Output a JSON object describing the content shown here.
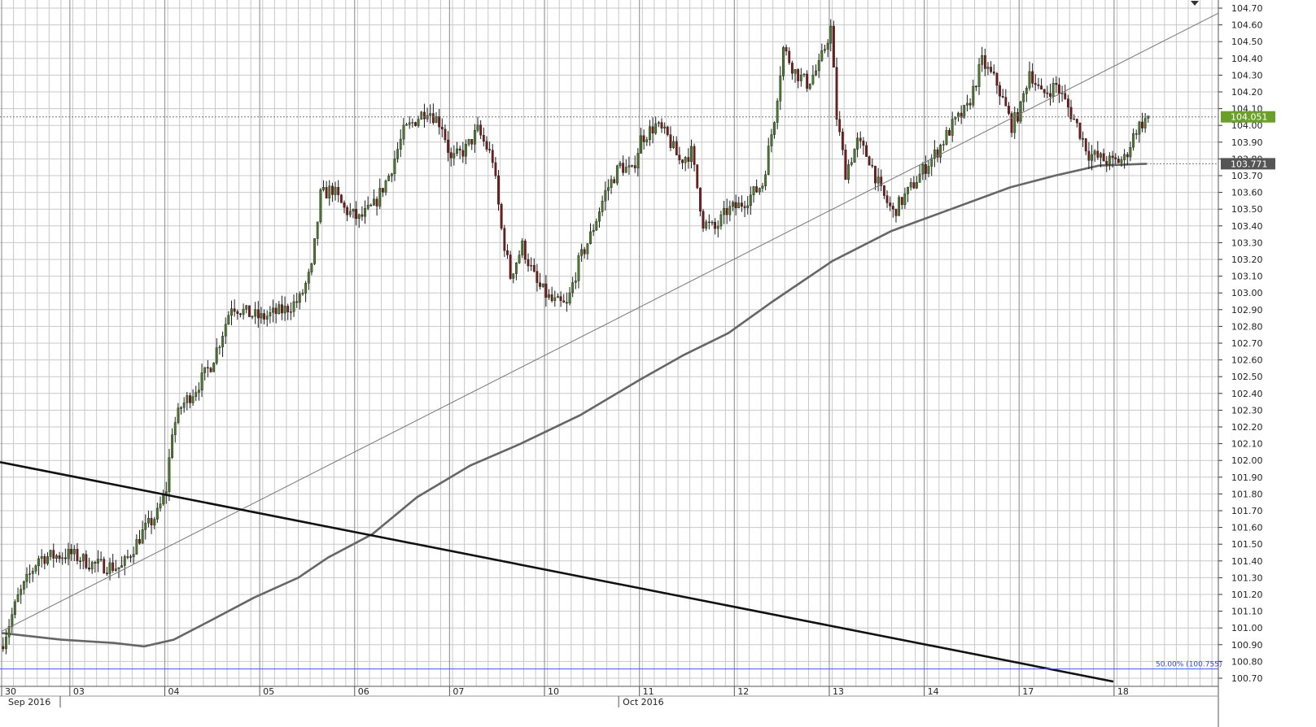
{
  "chart_data": {
    "type": "candlestick",
    "ylim": [
      100.67,
      104.72
    ],
    "y_ticks": [
      "104.70",
      "104.60",
      "104.50",
      "104.40",
      "104.30",
      "104.20",
      "104.10",
      "104.00",
      "103.90",
      "103.80",
      "103.70",
      "103.60",
      "103.50",
      "103.40",
      "103.30",
      "103.20",
      "103.10",
      "103.00",
      "102.90",
      "102.80",
      "102.70",
      "102.60",
      "102.50",
      "102.40",
      "102.30",
      "102.20",
      "102.10",
      "102.00",
      "101.90",
      "101.80",
      "101.70",
      "101.60",
      "101.50",
      "101.40",
      "101.30",
      "101.20",
      "101.10",
      "101.00",
      "100.90",
      "100.80",
      "100.70"
    ],
    "x_day_labels": [
      {
        "label": "30",
        "bar": 0
      },
      {
        "label": "03",
        "bar": 23
      },
      {
        "label": "04",
        "bar": 55
      },
      {
        "label": "05",
        "bar": 87
      },
      {
        "label": "06",
        "bar": 119
      },
      {
        "label": "07",
        "bar": 151
      },
      {
        "label": "10",
        "bar": 183
      },
      {
        "label": "11",
        "bar": 215
      },
      {
        "label": "12",
        "bar": 247
      },
      {
        "label": "13",
        "bar": 279
      },
      {
        "label": "14",
        "bar": 311
      },
      {
        "label": "17",
        "bar": 343
      },
      {
        "label": "18",
        "bar": 375
      }
    ],
    "x_month_labels": [
      {
        "label": "Sep 2016",
        "bar": 0
      },
      {
        "label": "Oct 2016",
        "bar": 208
      }
    ],
    "last_price": 104.051,
    "last_price_label": "104.051",
    "ma_value": 103.771,
    "ma_value_label": "103.771",
    "fib_level": 100.755,
    "fib_label": "50.00% (100.755)",
    "key_closes": [
      [
        0,
        100.92
      ],
      [
        5,
        101.18
      ],
      [
        12,
        101.42
      ],
      [
        23,
        101.44
      ],
      [
        30,
        101.38
      ],
      [
        40,
        101.36
      ],
      [
        47,
        101.57
      ],
      [
        52,
        101.68
      ],
      [
        55,
        101.83
      ],
      [
        57,
        102.18
      ],
      [
        60,
        102.32
      ],
      [
        65,
        102.43
      ],
      [
        70,
        102.57
      ],
      [
        73,
        102.71
      ],
      [
        77,
        102.93
      ],
      [
        82,
        102.88
      ],
      [
        87,
        102.85
      ],
      [
        95,
        102.9
      ],
      [
        100,
        102.96
      ],
      [
        104,
        103.14
      ],
      [
        107,
        103.58
      ],
      [
        111,
        103.62
      ],
      [
        115,
        103.5
      ],
      [
        120,
        103.44
      ],
      [
        125,
        103.52
      ],
      [
        130,
        103.7
      ],
      [
        135,
        103.96
      ],
      [
        140,
        104.05
      ],
      [
        143,
        104.1
      ],
      [
        148,
        104.0
      ],
      [
        151,
        103.79
      ],
      [
        156,
        103.86
      ],
      [
        160,
        103.97
      ],
      [
        165,
        103.8
      ],
      [
        168,
        103.38
      ],
      [
        171,
        103.1
      ],
      [
        175,
        103.28
      ],
      [
        180,
        103.05
      ],
      [
        185,
        102.95
      ],
      [
        190,
        102.92
      ],
      [
        194,
        103.18
      ],
      [
        198,
        103.34
      ],
      [
        203,
        103.6
      ],
      [
        208,
        103.76
      ],
      [
        212,
        103.72
      ],
      [
        215,
        103.92
      ],
      [
        220,
        104.0
      ],
      [
        224,
        103.93
      ],
      [
        228,
        103.79
      ],
      [
        232,
        103.84
      ],
      [
        236,
        103.42
      ],
      [
        240,
        103.38
      ],
      [
        244,
        103.49
      ],
      [
        248,
        103.52
      ],
      [
        252,
        103.58
      ],
      [
        256,
        103.65
      ],
      [
        260,
        104.05
      ],
      [
        263,
        104.46
      ],
      [
        267,
        104.32
      ],
      [
        271,
        104.25
      ],
      [
        275,
        104.35
      ],
      [
        279,
        104.58
      ],
      [
        281,
        104.05
      ],
      [
        284,
        103.72
      ],
      [
        288,
        103.9
      ],
      [
        292,
        103.8
      ],
      [
        296,
        103.6
      ],
      [
        300,
        103.48
      ],
      [
        305,
        103.6
      ],
      [
        310,
        103.73
      ],
      [
        315,
        103.85
      ],
      [
        320,
        104.0
      ],
      [
        325,
        104.1
      ],
      [
        330,
        104.38
      ],
      [
        335,
        104.25
      ],
      [
        340,
        104.0
      ],
      [
        343,
        104.1
      ],
      [
        346,
        104.33
      ],
      [
        350,
        104.18
      ],
      [
        355,
        104.24
      ],
      [
        358,
        104.14
      ],
      [
        362,
        104.0
      ],
      [
        366,
        103.83
      ],
      [
        370,
        103.8
      ],
      [
        374,
        103.78
      ],
      [
        378,
        103.8
      ],
      [
        382,
        103.98
      ],
      [
        386,
        104.051
      ]
    ]
  }
}
